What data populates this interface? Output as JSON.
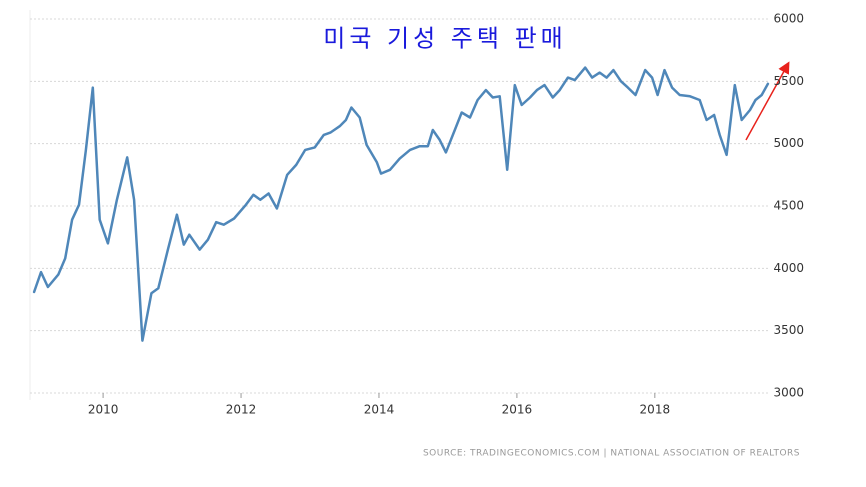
{
  "chart_data": {
    "type": "line",
    "title": "미국 기성 주택 판매",
    "source": "SOURCE: TRADINGECONOMICS.COM | NATIONAL ASSOCIATION OF REALTORS",
    "color": "#4f87b9",
    "grid": true,
    "xlim": [
      2008.94,
      2019.67
    ],
    "ylim": [
      3000,
      6000
    ],
    "xticks": [
      2010,
      2012,
      2014,
      2016,
      2018
    ],
    "yticks": [
      3000,
      3500,
      4000,
      4500,
      5000,
      5500,
      6000
    ],
    "x": [
      2009.0,
      2009.1,
      2009.2,
      2009.35,
      2009.45,
      2009.55,
      2009.65,
      2009.75,
      2009.85,
      2009.95,
      2010.07,
      2010.2,
      2010.35,
      2010.45,
      2010.57,
      2010.7,
      2010.8,
      2010.94,
      2011.07,
      2011.17,
      2011.25,
      2011.4,
      2011.52,
      2011.64,
      2011.75,
      2011.9,
      2012.07,
      2012.18,
      2012.28,
      2012.4,
      2012.52,
      2012.67,
      2012.8,
      2012.93,
      2013.07,
      2013.2,
      2013.3,
      2013.43,
      2013.52,
      2013.6,
      2013.72,
      2013.82,
      2013.97,
      2014.03,
      2014.16,
      2014.3,
      2014.45,
      2014.59,
      2014.71,
      2014.78,
      2014.88,
      2014.97,
      2015.1,
      2015.2,
      2015.32,
      2015.43,
      2015.55,
      2015.65,
      2015.75,
      2015.86,
      2015.97,
      2016.07,
      2016.19,
      2016.29,
      2016.4,
      2016.52,
      2016.62,
      2016.74,
      2016.84,
      2016.99,
      2017.09,
      2017.2,
      2017.3,
      2017.4,
      2017.51,
      2017.61,
      2017.72,
      2017.86,
      2017.96,
      2018.04,
      2018.14,
      2018.25,
      2018.36,
      2018.51,
      2018.65,
      2018.75,
      2018.86,
      2018.94,
      2019.04,
      2019.16,
      2019.26,
      2019.38,
      2019.46,
      2019.55,
      2019.64
    ],
    "values": [
      3810,
      3970,
      3850,
      3950,
      4080,
      4390,
      4510,
      4950,
      5450,
      4390,
      4200,
      4550,
      4890,
      4550,
      3420,
      3800,
      3840,
      4150,
      4430,
      4190,
      4270,
      4150,
      4230,
      4370,
      4350,
      4400,
      4510,
      4590,
      4550,
      4600,
      4480,
      4750,
      4830,
      4950,
      4970,
      5070,
      5090,
      5140,
      5190,
      5290,
      5210,
      4990,
      4850,
      4760,
      4790,
      4880,
      4950,
      4980,
      4980,
      5110,
      5030,
      4930,
      5110,
      5250,
      5210,
      5350,
      5430,
      5370,
      5380,
      4790,
      5470,
      5310,
      5370,
      5430,
      5470,
      5370,
      5430,
      5530,
      5510,
      5610,
      5530,
      5570,
      5530,
      5590,
      5500,
      5450,
      5390,
      5590,
      5530,
      5390,
      5590,
      5450,
      5390,
      5380,
      5350,
      5190,
      5230,
      5070,
      4910,
      5470,
      5190,
      5270,
      5350,
      5390,
      5480
    ]
  }
}
